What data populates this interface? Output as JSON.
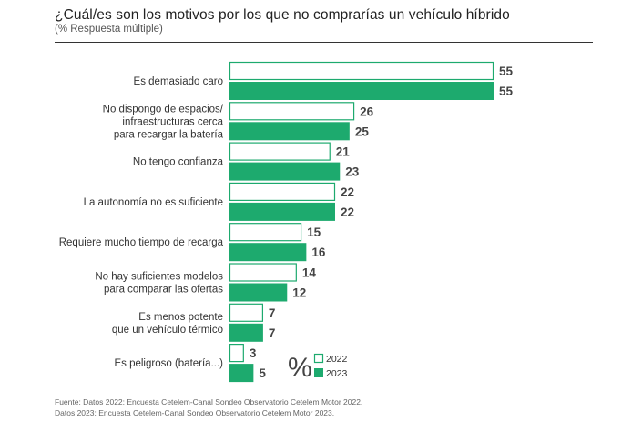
{
  "title": "¿Cuál/es son los motivos por los que no comprarías un vehículo híbrido",
  "subtitle": "(% Respuesta múltiple)",
  "footer": {
    "line1": "Fuente: Datos 2022: Encuesta Cetelem-Canal Sondeo Observatorio Cetelem Motor 2022.",
    "line2": "Datos 2023: Encuesta Cetelem-Canal Sondeo Observatorio Cetelem Motor 2023."
  },
  "legend": {
    "symbol": "%",
    "items": [
      {
        "label": "2022"
      },
      {
        "label": "2023"
      }
    ]
  },
  "colors": {
    "series2022_fill": "#ffffff",
    "series2022_stroke": "#1daa6e",
    "series2023_fill": "#1daa6e",
    "value_text": "#444444",
    "category_text": "#333333"
  },
  "chart_data": {
    "type": "bar",
    "orientation": "horizontal",
    "unit": "%",
    "categories": [
      [
        "Es demasiado caro"
      ],
      [
        "No dispongo de espacios/",
        "infraestructuras cerca",
        "para recargar la batería"
      ],
      [
        "No tengo confianza"
      ],
      [
        "La autonomía no es suficiente"
      ],
      [
        "Requiere mucho tiempo de recarga"
      ],
      [
        "No hay suficientes modelos",
        "para comparar las ofertas"
      ],
      [
        "Es menos potente",
        "que un vehículo térmico"
      ],
      [
        "Es peligroso (batería...)"
      ]
    ],
    "series": [
      {
        "name": "2022",
        "values": [
          55,
          26,
          21,
          22,
          15,
          14,
          7,
          3
        ]
      },
      {
        "name": "2023",
        "values": [
          55,
          25,
          23,
          22,
          16,
          12,
          7,
          5
        ]
      }
    ],
    "xlim": [
      0,
      55
    ],
    "grid": false,
    "legend_position": "bottom-right"
  }
}
